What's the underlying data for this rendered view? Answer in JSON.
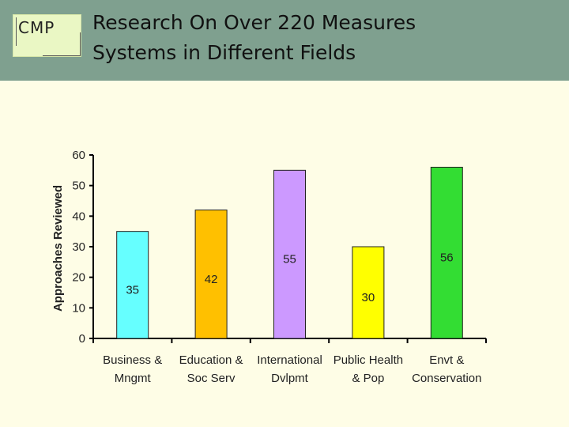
{
  "header": {
    "logo_text": "CMP",
    "title_line1": "Research On Over 220 Measures",
    "title_line2": "Systems in Different Fields"
  },
  "chart_data": {
    "type": "bar",
    "categories": [
      [
        "Business &",
        "Mngmt"
      ],
      [
        "Education &",
        "Soc Serv"
      ],
      [
        "International",
        "Dvlpmt"
      ],
      [
        "Public Health",
        "& Pop"
      ],
      [
        "Envt &",
        "Conservation"
      ]
    ],
    "values": [
      35,
      42,
      55,
      30,
      56
    ],
    "colors": [
      "#66ffff",
      "#ffc000",
      "#cc99ff",
      "#ffff00",
      "#33dd33"
    ],
    "ylabel": "Approaches Reviewed",
    "xlabel": "",
    "ylim": [
      0,
      60
    ],
    "yticks": [
      0,
      10,
      20,
      30,
      40,
      50,
      60
    ],
    "grid": false
  }
}
